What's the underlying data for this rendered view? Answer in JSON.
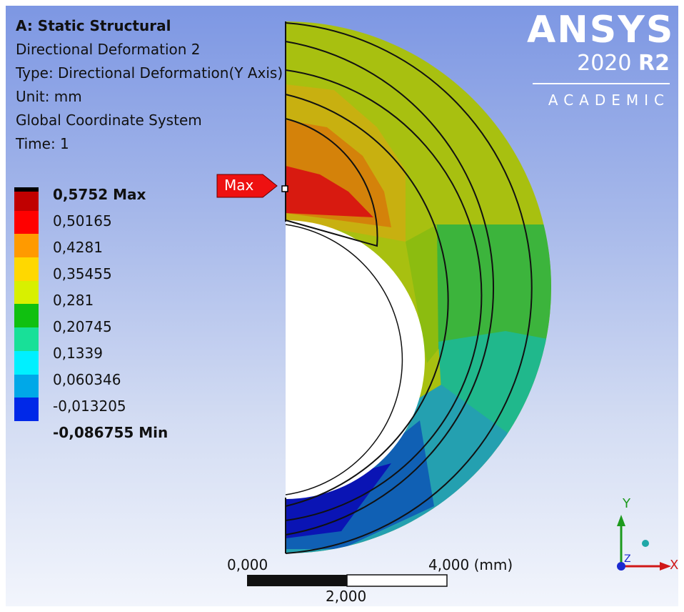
{
  "header": {
    "title": "A: Static Structural",
    "result_name": "Directional Deformation 2",
    "type": "Type: Directional Deformation(Y Axis)",
    "unit": "Unit: mm",
    "coord_system": "Global Coordinate System",
    "time": "Time: 1"
  },
  "logo": {
    "brand": "ANSYS",
    "version": "2020",
    "release": "R2",
    "edition": "ACADEMIC"
  },
  "legend": {
    "max_label": "0,5752 Max",
    "values": [
      "0,50165",
      "0,4281",
      "0,35455",
      "0,281",
      "0,20745",
      "0,1339",
      "0,060346",
      "-0,013205"
    ],
    "min_label": "-0,086755 Min",
    "colors": [
      "#c00000",
      "#ff0000",
      "#ff9a00",
      "#ffd800",
      "#d8f000",
      "#10c010",
      "#18e098",
      "#00f0ff",
      "#00a8e8",
      "#0028e8"
    ]
  },
  "probe": {
    "label": "Max"
  },
  "scale_bar": {
    "left": "0,000",
    "right": "4,000 (mm)",
    "mid": "2,000"
  },
  "triad": {
    "x": "X",
    "y": "Y",
    "z": "Z"
  },
  "contour_colors": {
    "red": "#d81a10",
    "orange": "#d4820a",
    "yellowish": "#c8b010",
    "olive": "#a8c010",
    "green_yellow": "#8cbc10",
    "green": "#3cb43c",
    "teal": "#20b88c",
    "cyan": "#24a0b0",
    "blue_mid": "#2a7cbc",
    "blue": "#1060b4",
    "navy": "#0a14b4"
  }
}
